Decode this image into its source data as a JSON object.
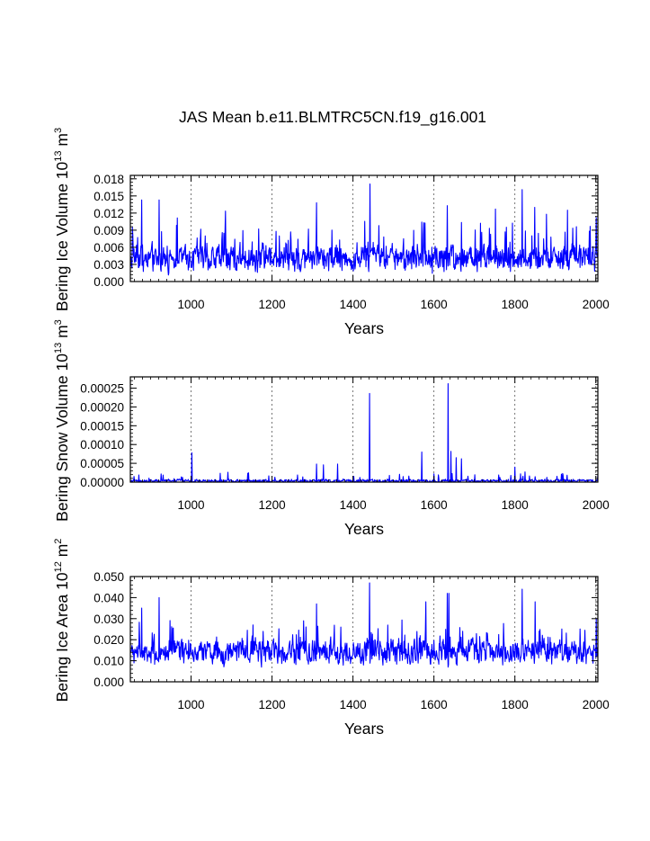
{
  "title": "JAS Mean b.e11.BLMTRC5CN.f19_g16.001",
  "colors": {
    "series": "#0000ff",
    "axis": "#000000",
    "refline": "#555555"
  },
  "chart_data": [
    {
      "type": "line",
      "ylabel": "Bering Ice Volume 10",
      "ylabel_exp": "13",
      "ylabel_unit": " m",
      "ylabel_unit_exp": "3",
      "xlabel": "Years",
      "xlim": [
        850,
        2005
      ],
      "ylim": [
        0.0,
        0.0186
      ],
      "yticks": [
        0.0,
        0.003,
        0.006,
        0.009,
        0.012,
        0.015,
        0.018
      ],
      "ytick_labels": [
        "0.000",
        "0.003",
        "0.006",
        "0.009",
        "0.012",
        "0.015",
        "0.018"
      ],
      "xticks": [
        1000,
        1200,
        1400,
        1600,
        1800,
        2000
      ],
      "xtick_labels": [
        "1000",
        "1200",
        "1400",
        "1600",
        "1800",
        "2000"
      ],
      "reference_years": [
        1000,
        1200,
        1400,
        1600,
        1800,
        2000
      ],
      "series": {
        "name": "Bering Ice Volume",
        "x_start": 850,
        "x_end": 2005,
        "baseline": 0.0035,
        "noise": 0.0022,
        "spike_rate": 0.09,
        "spike_size": 0.006,
        "peaks": [
          [
            878,
            0.0143
          ],
          [
            921,
            0.0143
          ],
          [
            1310,
            0.0138
          ],
          [
            1442,
            0.0171
          ],
          [
            1633,
            0.0133
          ],
          [
            1752,
            0.0127
          ],
          [
            1818,
            0.0161
          ],
          [
            1849,
            0.013
          ],
          [
            1878,
            0.0118
          ],
          [
            1930,
            0.0125
          ],
          [
            2001,
            0.0112
          ]
        ]
      }
    },
    {
      "type": "line",
      "ylabel": "Bering Snow Volume 10",
      "ylabel_exp": "13",
      "ylabel_unit": " m",
      "ylabel_unit_exp": "3",
      "xlabel": "Years",
      "xlim": [
        850,
        2005
      ],
      "ylim": [
        0.0,
        0.00028
      ],
      "yticks": [
        0.0,
        5e-05,
        0.0001,
        0.00015,
        0.0002,
        0.00025
      ],
      "ytick_labels": [
        "0.00000",
        "0.00005",
        "0.00010",
        "0.00015",
        "0.00020",
        "0.00025"
      ],
      "xticks": [
        1000,
        1200,
        1400,
        1600,
        1800,
        2000
      ],
      "xtick_labels": [
        "1000",
        "1200",
        "1400",
        "1600",
        "1800",
        "2000"
      ],
      "reference_years": [
        1000,
        1200,
        1400,
        1600,
        1800,
        2000
      ],
      "series": {
        "name": "Bering Snow Volume",
        "x_start": 850,
        "x_end": 2005,
        "baseline": 2e-06,
        "noise": 4e-06,
        "spike_rate": 0.05,
        "spike_size": 2.2e-05,
        "peaks": [
          [
            1002,
            7.8e-05
          ],
          [
            1310,
            4.8e-05
          ],
          [
            1327,
            4.6e-05
          ],
          [
            1362,
            4.8e-05
          ],
          [
            1441,
            0.000236
          ],
          [
            1570,
            8e-05
          ],
          [
            1600,
            2.2e-05
          ],
          [
            1635,
            0.000262
          ],
          [
            1642,
            8.2e-05
          ],
          [
            1655,
            6.5e-05
          ],
          [
            1668,
            6.2e-05
          ],
          [
            1800,
            4e-05
          ]
        ]
      }
    },
    {
      "type": "line",
      "ylabel": "Bering Ice Area 10",
      "ylabel_exp": "12",
      "ylabel_unit": " m",
      "ylabel_unit_exp": "2",
      "xlabel": "Years",
      "xlim": [
        850,
        2005
      ],
      "ylim": [
        0.0,
        0.05
      ],
      "yticks": [
        0.0,
        0.01,
        0.02,
        0.03,
        0.04,
        0.05
      ],
      "ytick_labels": [
        "0.000",
        "0.010",
        "0.020",
        "0.030",
        "0.040",
        "0.050"
      ],
      "xticks": [
        1000,
        1200,
        1400,
        1600,
        1800,
        2000
      ],
      "xtick_labels": [
        "1000",
        "1200",
        "1400",
        "1600",
        "1800",
        "2000"
      ],
      "reference_years": [
        1000,
        1200,
        1400,
        1600,
        1800,
        2000
      ],
      "series": {
        "name": "Bering Ice Area",
        "x_start": 850,
        "x_end": 2005,
        "baseline": 0.0125,
        "noise": 0.0055,
        "spike_rate": 0.09,
        "spike_size": 0.012,
        "peaks": [
          [
            878,
            0.035
          ],
          [
            921,
            0.04
          ],
          [
            1310,
            0.037
          ],
          [
            1441,
            0.047
          ],
          [
            1580,
            0.038
          ],
          [
            1633,
            0.042
          ],
          [
            1637,
            0.042
          ],
          [
            1818,
            0.044
          ],
          [
            1850,
            0.038
          ],
          [
            2001,
            0.03
          ]
        ]
      }
    }
  ]
}
